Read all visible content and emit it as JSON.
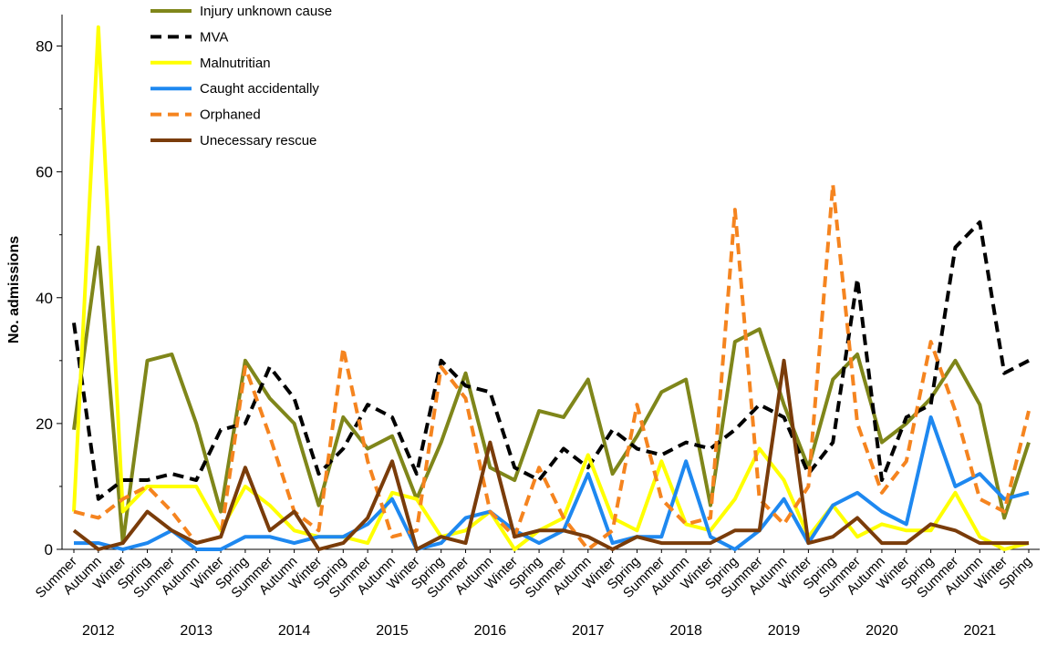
{
  "chart_data": {
    "type": "line",
    "ylabel": "No. admissions",
    "categories": [
      "Summer",
      "Autumn",
      "Winter",
      "Spring",
      "Summer",
      "Autumn",
      "Winter",
      "Spring",
      "Summer",
      "Autumn",
      "Winter",
      "Spring",
      "Summer",
      "Autumn",
      "Winter",
      "Spring",
      "Summer",
      "Autumn",
      "Winter",
      "Spring",
      "Summer",
      "Autumn",
      "Winter",
      "Spring",
      "Summer",
      "Autumn",
      "Winter",
      "Spring",
      "Summer",
      "Autumn",
      "Winter",
      "Spring",
      "Summer",
      "Autumn",
      "Winter",
      "Spring",
      "Summer",
      "Autumn",
      "Winter",
      "Spring"
    ],
    "year_labels": [
      "2012",
      "2013",
      "2014",
      "2015",
      "2016",
      "2017",
      "2018",
      "2019",
      "2020",
      "2021"
    ],
    "ylim": [
      0,
      85
    ],
    "yticks": [
      0,
      20,
      40,
      60,
      80
    ],
    "minor_yticks": [
      10,
      30,
      50,
      70
    ],
    "legend": "upper left",
    "series": [
      {
        "name": "Injury unknown cause",
        "color": "#7f861a",
        "dashed": false,
        "values": [
          19,
          48,
          1,
          30,
          31,
          20,
          6,
          30,
          24,
          20,
          7,
          21,
          16,
          18,
          8,
          17,
          28,
          13,
          11,
          22,
          21,
          27,
          12,
          18,
          25,
          27,
          7,
          33,
          35,
          23,
          13,
          27,
          31,
          17,
          20,
          24,
          30,
          23,
          5,
          17
        ]
      },
      {
        "name": "MVA",
        "color": "#000000",
        "dashed": true,
        "values": [
          36,
          8,
          11,
          11,
          12,
          11,
          19,
          20,
          29,
          24,
          12,
          16,
          23,
          21,
          12,
          30,
          26,
          25,
          13,
          11,
          16,
          13,
          19,
          16,
          15,
          17,
          16,
          19,
          23,
          21,
          12,
          17,
          43,
          11,
          21,
          23,
          48,
          52,
          28,
          30
        ]
      },
      {
        "name": "Malnutritian",
        "color": "#ffff00",
        "dashed": false,
        "values": [
          6,
          83,
          6,
          10,
          10,
          10,
          3,
          10,
          7,
          3,
          2,
          2,
          1,
          9,
          8,
          2,
          3,
          6,
          0,
          3,
          5,
          15,
          5,
          3,
          14,
          4,
          3,
          8,
          16,
          11,
          2,
          7,
          2,
          4,
          3,
          3,
          9,
          2,
          0,
          1
        ]
      },
      {
        "name": "Caught accidentally",
        "color": "#1e88f0",
        "dashed": false,
        "values": [
          1,
          1,
          0,
          1,
          3,
          0,
          0,
          2,
          2,
          1,
          2,
          2,
          4,
          8,
          0,
          1,
          5,
          6,
          3,
          1,
          3,
          12,
          1,
          2,
          2,
          14,
          2,
          0,
          3,
          8,
          1,
          7,
          9,
          6,
          4,
          21,
          10,
          12,
          8,
          9
        ]
      },
      {
        "name": "Orphaned",
        "color": "#f5841f",
        "dashed": true,
        "values": [
          6,
          5,
          8,
          10,
          6,
          1,
          2,
          29,
          18,
          6,
          3,
          32,
          14,
          2,
          3,
          29,
          24,
          6,
          2,
          13,
          5,
          0,
          3,
          23,
          8,
          4,
          5,
          54,
          8,
          4,
          10,
          58,
          20,
          9,
          14,
          33,
          22,
          8,
          6,
          22
        ]
      },
      {
        "name": "Unecessary rescue",
        "color": "#7a3c0a",
        "dashed": false,
        "values": [
          3,
          0,
          1,
          6,
          3,
          1,
          2,
          13,
          3,
          6,
          0,
          1,
          5,
          14,
          0,
          2,
          1,
          17,
          2,
          3,
          3,
          2,
          0,
          2,
          1,
          1,
          1,
          3,
          3,
          30,
          1,
          2,
          5,
          1,
          1,
          4,
          3,
          1,
          1,
          1
        ]
      }
    ]
  }
}
